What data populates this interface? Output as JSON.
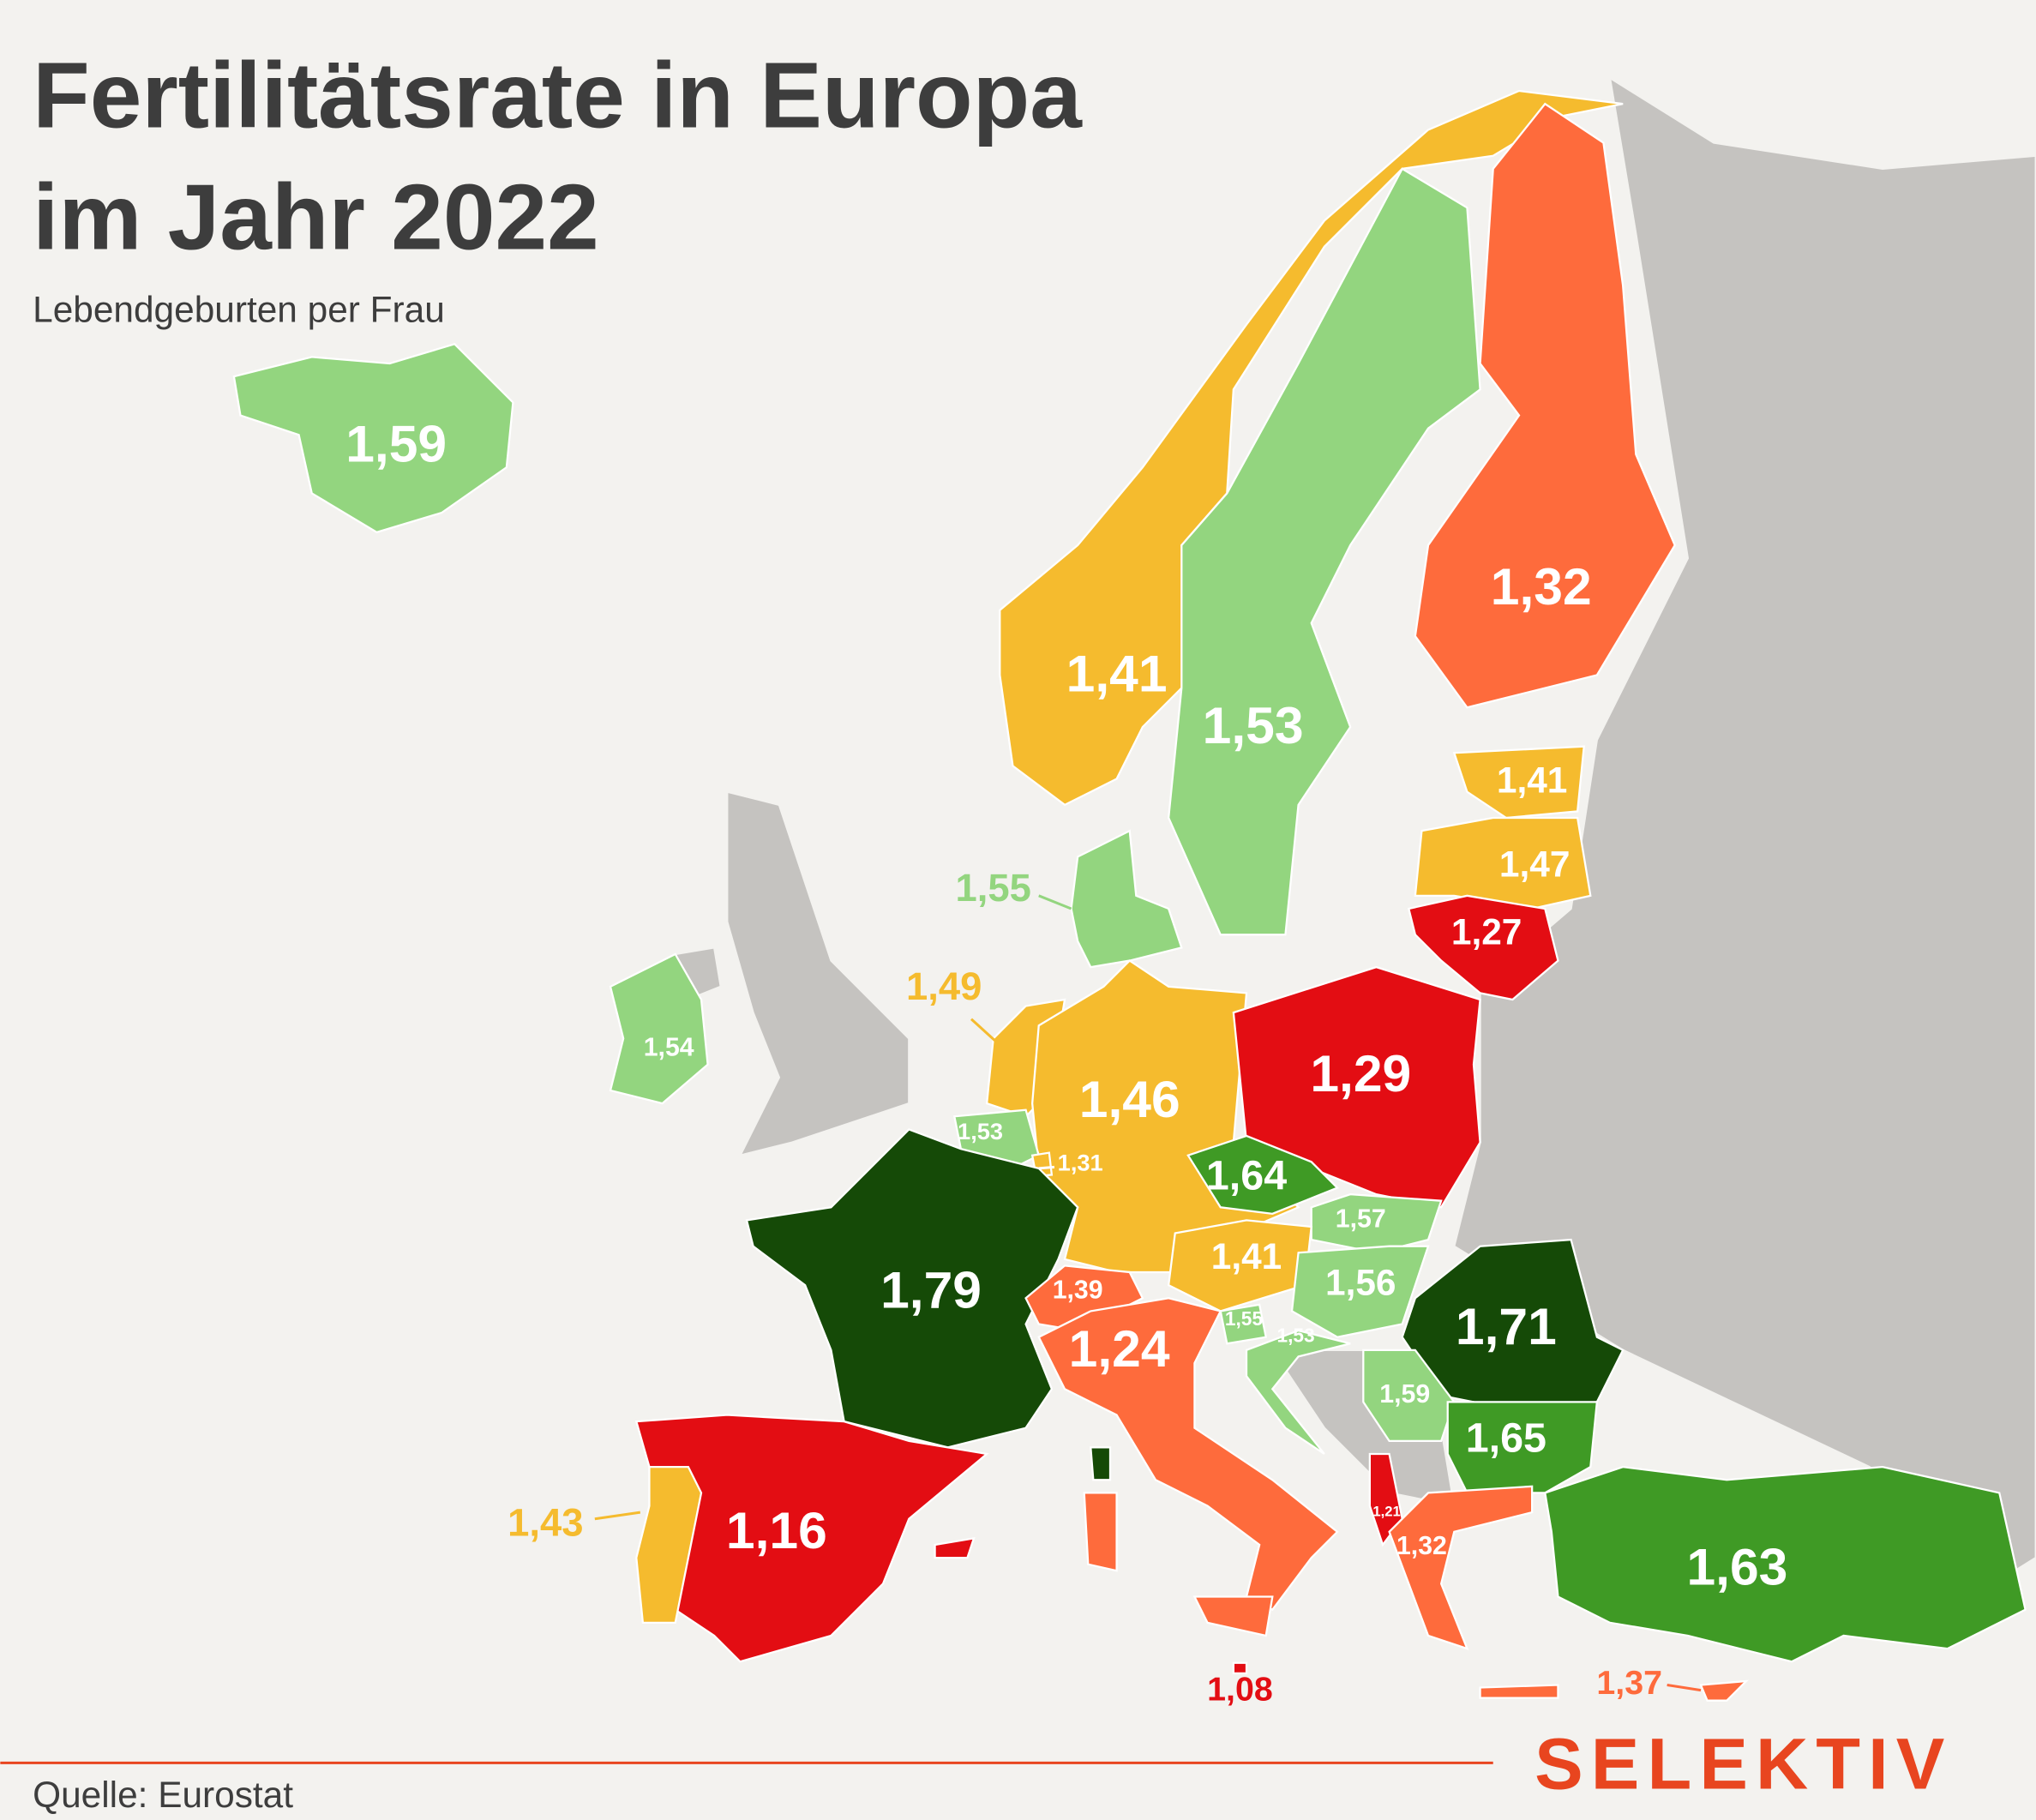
{
  "header": {
    "title": [
      "Fertilitätsrate in Europa",
      "im Jahr 2022"
    ],
    "subtitle": "Lebendgeburten per Frau"
  },
  "regions": [
    {
      "label": "1,59",
      "color": "#93d57f"
    },
    {
      "label": "1,41",
      "color": "#f5bb2e"
    },
    {
      "label": "1,53",
      "color": "#93d57f"
    },
    {
      "label": "1,32",
      "color": "#fe6b3c"
    },
    {
      "label": "1,41",
      "color": "#f5bb2e"
    },
    {
      "label": "1,47",
      "color": "#f5bb2e"
    },
    {
      "label": "1,27",
      "color": "#e30d13"
    },
    {
      "label": "1,55",
      "color": "#93d57f"
    },
    {
      "label": "1,54",
      "color": "#93d57f"
    },
    {
      "label": "1,49",
      "color": "#f5bb2e"
    },
    {
      "label": "1,46",
      "color": "#f5bb2e"
    },
    {
      "label": "1,29",
      "color": "#e30d13"
    },
    {
      "label": "1,53",
      "color": "#93d57f"
    },
    {
      "label": "1,31",
      "color": "#f5bb2e"
    },
    {
      "label": "1,64",
      "color": "#3f9a25"
    },
    {
      "label": "1,79",
      "color": "#154a07"
    },
    {
      "label": "1,57",
      "color": "#93d57f"
    },
    {
      "label": "1,41",
      "color": "#f5bb2e"
    },
    {
      "label": "1,56",
      "color": "#93d57f"
    },
    {
      "label": "1,39",
      "color": "#fe6b3c"
    },
    {
      "label": "1,55",
      "color": "#93d57f"
    },
    {
      "label": "1,53",
      "color": "#93d57f"
    },
    {
      "label": "1,71",
      "color": "#154a07"
    },
    {
      "label": "1,24",
      "color": "#fe6b3c"
    },
    {
      "label": "1,59",
      "color": "#93d57f"
    },
    {
      "label": "1,65",
      "color": "#3f9a25"
    },
    {
      "label": "1,16",
      "color": "#e30d13"
    },
    {
      "label": "1,43",
      "color": "#f5bb2e"
    },
    {
      "label": "1,21",
      "color": "#e30d13"
    },
    {
      "label": "1,32",
      "color": "#fe6b3c"
    },
    {
      "label": "1,63",
      "color": "#3f9a25"
    },
    {
      "label": "1,08",
      "color": "#e30d13"
    },
    {
      "label": "1,37",
      "color": "#fe6b3c"
    }
  ],
  "footer": {
    "source": "Quelle: Eurostat",
    "brand": "SELEKTIV"
  }
}
